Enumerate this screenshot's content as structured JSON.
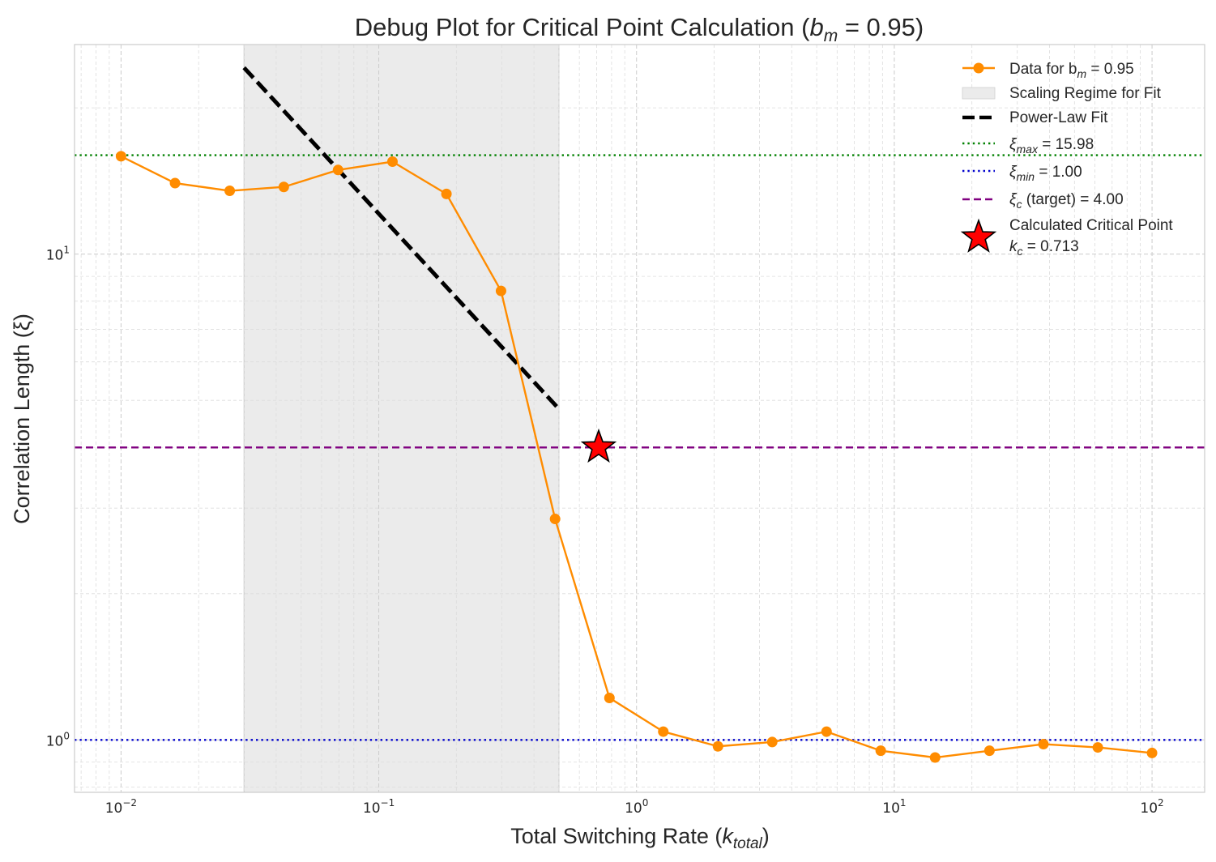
{
  "chart_data": {
    "type": "line",
    "title_main": "Debug Plot for Critical Point Calculation (",
    "title_var": "b",
    "title_sub": "m",
    "title_eq": " = 0.95)",
    "xlabel_main": "Total Switching Rate (",
    "xlabel_var": "k",
    "xlabel_sub": "total",
    "xlabel_end": ")",
    "ylabel": "Correlation Length (ξ)",
    "x_scale": "log",
    "y_scale": "log",
    "xlim": [
      0.0066,
      160
    ],
    "ylim": [
      0.78,
      27
    ],
    "grid": true,
    "legend_position": "top-right",
    "x_ticks": [
      {
        "base": "10",
        "exp": "−2",
        "value": 0.01
      },
      {
        "base": "10",
        "exp": "−1",
        "value": 0.1
      },
      {
        "base": "10",
        "exp": "0",
        "value": 1
      },
      {
        "base": "10",
        "exp": "1",
        "value": 10
      },
      {
        "base": "10",
        "exp": "2",
        "value": 100
      }
    ],
    "y_ticks": [
      {
        "base": "10",
        "exp": "0",
        "value": 1
      },
      {
        "base": "10",
        "exp": "1",
        "value": 10
      }
    ],
    "series": [
      {
        "name_main": "Data for b",
        "name_sub": "m",
        "name_end": " = 0.95",
        "color": "#ff8c00",
        "x": [
          0.01,
          0.0162,
          0.0264,
          0.0428,
          0.0695,
          0.113,
          0.183,
          0.298,
          0.483,
          0.785,
          1.27,
          2.07,
          3.36,
          5.46,
          8.86,
          14.4,
          23.4,
          37.9,
          61.6,
          100
        ],
        "y": [
          15.9,
          14.0,
          13.5,
          13.75,
          14.9,
          15.5,
          13.3,
          8.4,
          2.85,
          1.22,
          1.04,
          0.97,
          0.99,
          1.04,
          0.95,
          0.92,
          0.95,
          0.98,
          0.965,
          0.94
        ]
      }
    ],
    "fit": {
      "name": "Power-Law Fit",
      "color": "#000000",
      "x": [
        0.03,
        0.5
      ],
      "y": [
        24.2,
        4.8
      ]
    },
    "scaling_regime": {
      "name": "Scaling Regime for Fit",
      "x_start": 0.03,
      "x_end": 0.5,
      "color": "#e5e5e5"
    },
    "hlines": [
      {
        "var": "ξ",
        "sub": "max",
        "label_end": " = 15.98",
        "value": 15.98,
        "color": "#008000",
        "style": "dotted"
      },
      {
        "var": "ξ",
        "sub": "min",
        "label_end": " = 1.00",
        "value": 1.0,
        "color": "#0000cd",
        "style": "dotted"
      },
      {
        "var": "ξ",
        "sub": "c",
        "label_end": " (target) = 4.00",
        "value": 4.0,
        "color": "#800080",
        "style": "dashed"
      }
    ],
    "critical_point": {
      "line1": "Calculated Critical Point",
      "line2_var": "k",
      "line2_sub": "c",
      "line2_end": " = 0.713",
      "x": 0.713,
      "y": 4.0,
      "color": "#ff0000"
    }
  }
}
